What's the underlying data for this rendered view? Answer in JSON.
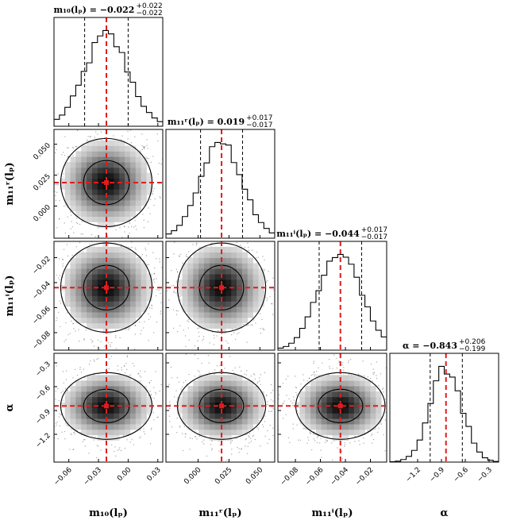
{
  "chart_data": {
    "type": "corner",
    "parameters": [
      {
        "key": "m10",
        "label": "m₁₀(lₚ)",
        "title": "m₁₀(lₚ) = −0.022",
        "title_plus": "+0.022",
        "title_minus": "−0.022",
        "median": -0.022,
        "q16": -0.044,
        "q84": 0.0,
        "sigma": 0.022,
        "range": [
          -0.075,
          0.035
        ],
        "ticks": [
          -0.06,
          -0.03,
          0.0,
          0.03
        ],
        "tick_labels": [
          "−0.06",
          "−0.03",
          "0.00",
          "0.03"
        ]
      },
      {
        "key": "m11r",
        "label": "m₁₁ʳ(lₚ)",
        "title": "m₁₁ʳ(lₚ) = 0.019",
        "title_plus": "+0.017",
        "title_minus": "−0.017",
        "median": 0.019,
        "q16": 0.002,
        "q84": 0.036,
        "sigma": 0.017,
        "range": [
          -0.026,
          0.062
        ],
        "ticks": [
          0.0,
          0.025,
          0.05
        ],
        "tick_labels": [
          "0.000",
          "0.025",
          "0.050"
        ]
      },
      {
        "key": "m11i",
        "label": "m₁₁ⁱ(lₚ)",
        "title": "m₁₁ⁱ(lₚ) = −0.044",
        "title_plus": "+0.017",
        "title_minus": "−0.017",
        "median": -0.044,
        "q16": -0.061,
        "q84": -0.027,
        "sigma": 0.017,
        "range": [
          -0.094,
          -0.007
        ],
        "ticks": [
          -0.08,
          -0.06,
          -0.04,
          -0.02
        ],
        "tick_labels": [
          "−0.08",
          "−0.06",
          "−0.04",
          "−0.02"
        ]
      },
      {
        "key": "alpha",
        "label": "α",
        "title": "α = −0.843",
        "title_plus": "+0.206",
        "title_minus": "−0.199",
        "median": -0.843,
        "q16": -1.042,
        "q84": -0.637,
        "sigma": 0.2,
        "range": [
          -1.55,
          -0.18
        ],
        "ticks": [
          -1.2,
          -0.9,
          -0.6,
          -0.3
        ],
        "tick_labels": [
          "−1.2",
          "−0.9",
          "−0.6",
          "−0.3"
        ]
      }
    ],
    "y_tick_rows": [
      {
        "row": 1,
        "param": "m11r",
        "ticks": [
          0.0,
          0.025,
          0.05
        ],
        "tick_labels": [
          "0.000",
          "0.025",
          "0.050"
        ]
      },
      {
        "row": 2,
        "param": "m11i",
        "ticks": [
          -0.08,
          -0.06,
          -0.04,
          -0.02
        ],
        "tick_labels": [
          "−0.08",
          "−0.06",
          "−0.04",
          "−0.02"
        ]
      },
      {
        "row": 3,
        "param": "alpha",
        "ticks": [
          -1.2,
          -0.9,
          -0.6,
          -0.3
        ],
        "tick_labels": [
          "−1.2",
          "−0.9",
          "−0.6",
          "−0.3"
        ]
      }
    ],
    "histogram_bins": 20,
    "contour_levels": [
      1,
      2
    ],
    "truth_lines": true,
    "colors": {
      "truth": "#e41a1c",
      "contour": "#000000",
      "density": "#000000",
      "frame": "#000000"
    }
  }
}
